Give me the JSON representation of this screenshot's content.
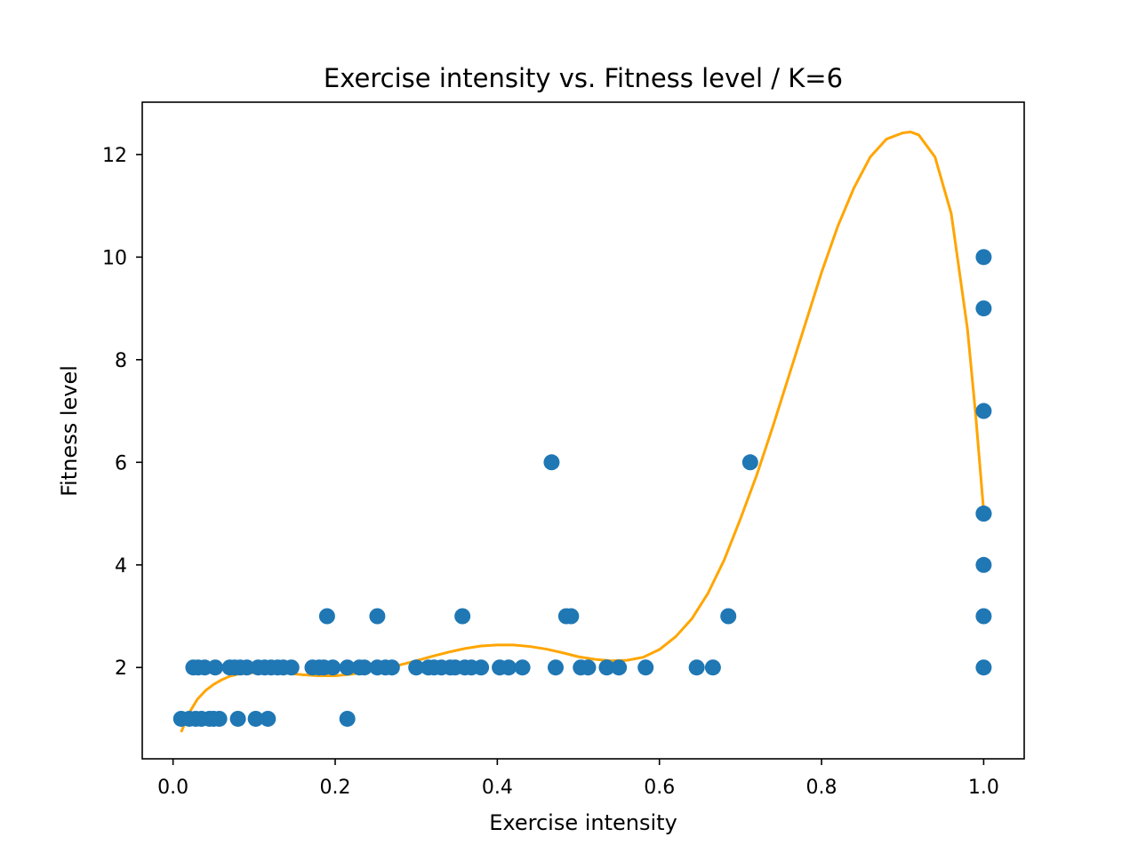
{
  "chart_data": {
    "type": "scatter",
    "title": "Exercise intensity vs. Fitness level / K=6",
    "xlabel": "Exercise intensity",
    "ylabel": "Fitness level",
    "xlim": [
      -0.038,
      1.05
    ],
    "ylim": [
      0.22,
      13.02
    ],
    "xticks": [
      0.0,
      0.2,
      0.4,
      0.6,
      0.8,
      1.0
    ],
    "xtick_labels": [
      "0.0",
      "0.2",
      "0.4",
      "0.6",
      "0.8",
      "1.0"
    ],
    "yticks": [
      2,
      4,
      6,
      8,
      10,
      12
    ],
    "ytick_labels": [
      "2",
      "4",
      "6",
      "8",
      "10",
      "12"
    ],
    "grid": false,
    "legend": "none",
    "colors": {
      "points": "#1f77b4",
      "curve": "#ffa500",
      "axes": "#000000"
    },
    "series": [
      {
        "kind": "scatter",
        "points": [
          [
            0.01,
            1
          ],
          [
            0.02,
            1
          ],
          [
            0.028,
            1
          ],
          [
            0.035,
            1
          ],
          [
            0.045,
            1
          ],
          [
            0.05,
            1
          ],
          [
            0.057,
            1
          ],
          [
            0.08,
            1
          ],
          [
            0.102,
            1
          ],
          [
            0.117,
            1
          ],
          [
            0.215,
            1
          ],
          [
            0.025,
            2
          ],
          [
            0.031,
            2
          ],
          [
            0.039,
            2
          ],
          [
            0.052,
            2
          ],
          [
            0.07,
            2
          ],
          [
            0.076,
            2
          ],
          [
            0.083,
            2
          ],
          [
            0.091,
            2
          ],
          [
            0.105,
            2
          ],
          [
            0.113,
            2
          ],
          [
            0.121,
            2
          ],
          [
            0.129,
            2
          ],
          [
            0.136,
            2
          ],
          [
            0.146,
            2
          ],
          [
            0.172,
            2
          ],
          [
            0.18,
            2
          ],
          [
            0.186,
            2
          ],
          [
            0.197,
            2
          ],
          [
            0.215,
            2
          ],
          [
            0.23,
            2
          ],
          [
            0.236,
            2
          ],
          [
            0.252,
            2
          ],
          [
            0.262,
            2
          ],
          [
            0.27,
            2
          ],
          [
            0.3,
            2
          ],
          [
            0.315,
            2
          ],
          [
            0.322,
            2
          ],
          [
            0.331,
            2
          ],
          [
            0.342,
            2
          ],
          [
            0.348,
            2
          ],
          [
            0.36,
            2
          ],
          [
            0.368,
            2
          ],
          [
            0.38,
            2
          ],
          [
            0.403,
            2
          ],
          [
            0.414,
            2
          ],
          [
            0.431,
            2
          ],
          [
            0.472,
            2
          ],
          [
            0.503,
            2
          ],
          [
            0.512,
            2
          ],
          [
            0.535,
            2
          ],
          [
            0.55,
            2
          ],
          [
            0.583,
            2
          ],
          [
            0.646,
            2
          ],
          [
            0.666,
            2
          ],
          [
            1.0,
            2
          ],
          [
            0.19,
            3
          ],
          [
            0.252,
            3
          ],
          [
            0.357,
            3
          ],
          [
            0.485,
            3
          ],
          [
            0.491,
            3
          ],
          [
            0.685,
            3
          ],
          [
            1.0,
            3
          ],
          [
            1.0,
            4
          ],
          [
            1.0,
            5
          ],
          [
            1.0,
            5
          ],
          [
            0.467,
            6
          ],
          [
            0.712,
            6
          ],
          [
            1.0,
            7
          ],
          [
            1.0,
            9
          ],
          [
            1.0,
            10
          ]
        ]
      },
      {
        "kind": "line",
        "points": [
          [
            0.01,
            0.74
          ],
          [
            0.02,
            1.12
          ],
          [
            0.03,
            1.38
          ],
          [
            0.04,
            1.55
          ],
          [
            0.05,
            1.67
          ],
          [
            0.06,
            1.76
          ],
          [
            0.07,
            1.83
          ],
          [
            0.08,
            1.87
          ],
          [
            0.1,
            1.9
          ],
          [
            0.12,
            1.91
          ],
          [
            0.14,
            1.89
          ],
          [
            0.16,
            1.86
          ],
          [
            0.18,
            1.84
          ],
          [
            0.2,
            1.84
          ],
          [
            0.22,
            1.87
          ],
          [
            0.24,
            1.92
          ],
          [
            0.26,
            1.98
          ],
          [
            0.28,
            2.05
          ],
          [
            0.3,
            2.13
          ],
          [
            0.32,
            2.22
          ],
          [
            0.34,
            2.3
          ],
          [
            0.36,
            2.37
          ],
          [
            0.38,
            2.42
          ],
          [
            0.4,
            2.44
          ],
          [
            0.42,
            2.44
          ],
          [
            0.44,
            2.41
          ],
          [
            0.46,
            2.36
          ],
          [
            0.48,
            2.29
          ],
          [
            0.5,
            2.21
          ],
          [
            0.52,
            2.16
          ],
          [
            0.54,
            2.13
          ],
          [
            0.56,
            2.14
          ],
          [
            0.58,
            2.2
          ],
          [
            0.6,
            2.35
          ],
          [
            0.62,
            2.6
          ],
          [
            0.64,
            2.95
          ],
          [
            0.66,
            3.45
          ],
          [
            0.68,
            4.1
          ],
          [
            0.7,
            4.9
          ],
          [
            0.72,
            5.75
          ],
          [
            0.74,
            6.7
          ],
          [
            0.76,
            7.7
          ],
          [
            0.78,
            8.7
          ],
          [
            0.8,
            9.7
          ],
          [
            0.82,
            10.6
          ],
          [
            0.84,
            11.35
          ],
          [
            0.86,
            11.95
          ],
          [
            0.88,
            12.3
          ],
          [
            0.9,
            12.42
          ],
          [
            0.91,
            12.44
          ],
          [
            0.92,
            12.38
          ],
          [
            0.94,
            11.95
          ],
          [
            0.96,
            10.85
          ],
          [
            0.98,
            8.6
          ],
          [
            0.99,
            6.95
          ],
          [
            1.0,
            5.05
          ]
        ]
      }
    ]
  }
}
